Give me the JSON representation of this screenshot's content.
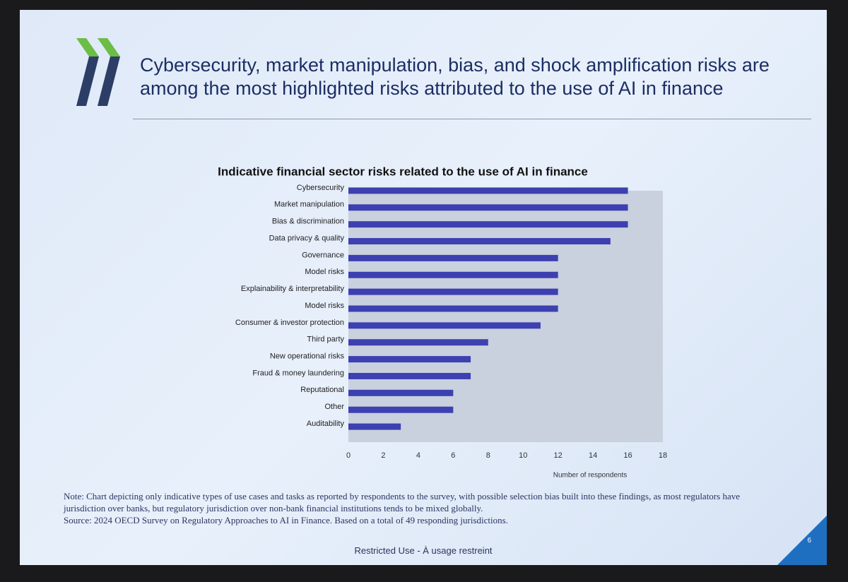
{
  "slide": {
    "heading": "Cybersecurity, market manipulation, bias, and shock amplification risks are among the most highlighted risks attributed to the use of AI in finance",
    "note": "Note: Chart depicting only indicative types of use cases and tasks as reported by respondents to the survey, with possible selection bias built into these findings, as most regulators have jurisdiction over banks, but regulatory jurisdiction over non-bank financial institutions tends to be mixed globally.",
    "source": "Source: 2024 OECD Survey on Regulatory Approaches to AI in Finance. Based on a total of 49 responding jurisdictions.",
    "footer": "Restricted Use - À usage restreint",
    "page": "6"
  },
  "chart_data": {
    "type": "hbar",
    "title": "Indicative financial sector risks related to the use of AI in finance",
    "xlabel": "Number of respondents",
    "categories": [
      "Cybersecurity",
      "Market manipulation",
      "Bias & discrimination",
      "Data privacy & quality",
      "Governance",
      "Model risks",
      "Explainability & interpretability",
      "Model risks",
      "Consumer & investor protection",
      "Third party",
      "New operational risks",
      "Fraud & money laundering",
      "Reputational",
      "Other",
      "Auditability"
    ],
    "values": [
      16,
      16,
      16,
      15,
      12,
      12,
      12,
      12,
      11,
      8,
      7,
      7,
      6,
      6,
      3
    ],
    "color": "#3d40b0",
    "xlim": [
      0,
      18
    ],
    "xticks": [
      0,
      2,
      4,
      6,
      8,
      10,
      12,
      14,
      16,
      18
    ],
    "grid": false
  }
}
